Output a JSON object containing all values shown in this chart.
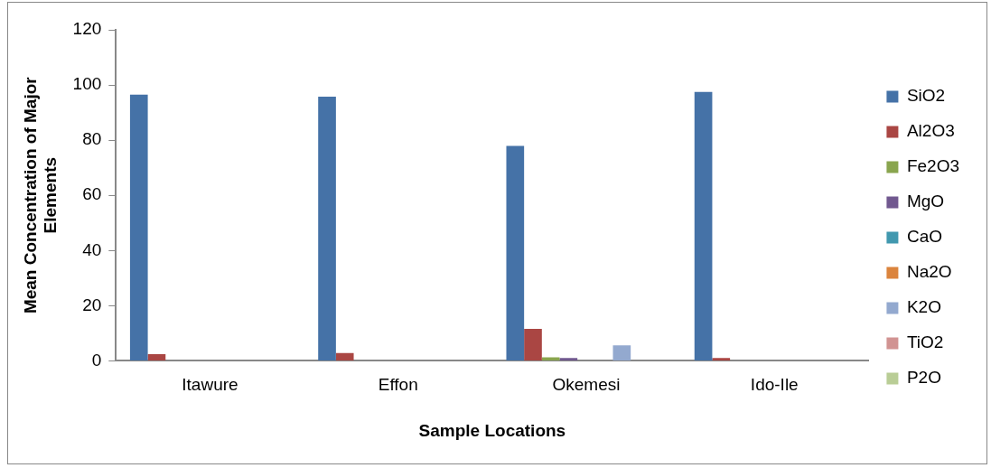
{
  "chart_data": {
    "type": "bar",
    "xlabel": "Sample Locations",
    "ylabel": "Mean Concentration of Major Elements",
    "categories": [
      "Itawure",
      "Effon",
      "Okemesi",
      "Ido-Ile"
    ],
    "series": [
      {
        "name": "SiO2",
        "color": "#4572a7",
        "values": [
          96.5,
          95.8,
          77.9,
          97.5
        ]
      },
      {
        "name": "Al2O3",
        "color": "#aa4643",
        "values": [
          2.4,
          2.8,
          11.6,
          1.0
        ]
      },
      {
        "name": "Fe2O3",
        "color": "#89a54e",
        "values": [
          0,
          0,
          1.3,
          0
        ]
      },
      {
        "name": "MgO",
        "color": "#71588f",
        "values": [
          0,
          0,
          1.0,
          0
        ]
      },
      {
        "name": "CaO",
        "color": "#4198af",
        "values": [
          0,
          0,
          0,
          0
        ]
      },
      {
        "name": "Na2O",
        "color": "#db843d",
        "values": [
          0,
          0,
          0,
          0
        ]
      },
      {
        "name": "K2O",
        "color": "#93a9cf",
        "values": [
          0,
          0,
          5.6,
          0
        ]
      },
      {
        "name": "TiO2",
        "color": "#d19392",
        "values": [
          0,
          0,
          0,
          0
        ]
      },
      {
        "name": "P2O",
        "color": "#b9cd96",
        "values": [
          0,
          0,
          0,
          0
        ]
      }
    ],
    "ylim": [
      0,
      120
    ],
    "yticks": [
      0,
      20,
      40,
      60,
      80,
      100,
      120
    ],
    "grid": false,
    "legend": "right"
  }
}
